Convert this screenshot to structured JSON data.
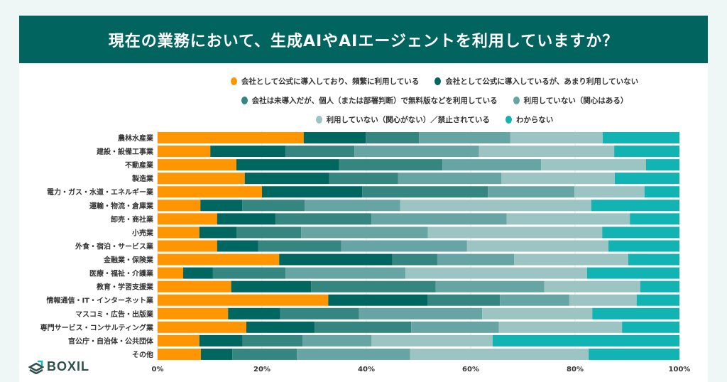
{
  "header": {
    "title": "現在の業務において、生成AIやAIエージェントを利用していますか？"
  },
  "brand": {
    "logo_text": "BOXIL"
  },
  "chart_data": {
    "type": "bar",
    "orientation": "horizontal",
    "stacked": true,
    "title": "現在の業務において、生成AIやAIエージェントを利用していますか？",
    "xlim": [
      0,
      100
    ],
    "xticks": [
      "0%",
      "20%",
      "40%",
      "60%",
      "80%",
      "100%"
    ],
    "grid": true,
    "legend_position": "top",
    "categories": [
      "農林水産業",
      "建設・設備工事業",
      "不動産業",
      "製造業",
      "電力・ガス・水道・エネルギー業",
      "運輸・物流・倉庫業",
      "卸売・商社業",
      "小売業",
      "外食・宿泊・サービス業",
      "金融業・保険業",
      "医療・福祉・介護業",
      "教育・学習支援業",
      "情報通信・IT・インターネット業",
      "マスコミ・広告・出版業",
      "専門サービス・コンサルティング業",
      "官公庁・自治体・公共団体",
      "その他"
    ],
    "series": [
      {
        "name": "会社として公式に導入しており、頻繁に利用している",
        "color": "#ff9500",
        "values": [
          28.0,
          10.1,
          15.1,
          16.7,
          20.0,
          8.2,
          11.4,
          8.0,
          11.4,
          23.3,
          4.9,
          14.1,
          32.7,
          13.5,
          17.0,
          8.0,
          8.3
        ]
      },
      {
        "name": "会社として公式に導入しているが、あまり利用していない",
        "color": "#006660",
        "values": [
          11.9,
          14.4,
          19.7,
          16.2,
          19.2,
          8.0,
          11.2,
          7.1,
          7.9,
          21.7,
          5.7,
          15.3,
          19.0,
          10.0,
          13.1,
          8.3,
          6.0
        ]
      },
      {
        "name": "会社は未導入だが、個人（または部署判断）で無料版などを利用している",
        "color": "#358581",
        "values": [
          10.2,
          13.2,
          19.8,
          13.2,
          24.1,
          12.0,
          18.4,
          12.4,
          15.9,
          8.6,
          13.9,
          23.9,
          13.9,
          15.1,
          18.5,
          11.5,
          12.4
        ]
      },
      {
        "name": "利用していない（関心はある）",
        "color": "#66a5a3",
        "values": [
          17.5,
          23.9,
          18.9,
          19.8,
          16.6,
          18.3,
          25.9,
          24.3,
          24.1,
          14.7,
          23.0,
          20.8,
          13.3,
          23.6,
          16.8,
          13.2,
          21.7
        ]
      },
      {
        "name": "利用していない（関心がない）／禁止されている",
        "color": "#9cc4c3",
        "values": [
          17.7,
          25.9,
          20.1,
          21.7,
          13.4,
          36.6,
          23.6,
          33.4,
          27.1,
          21.9,
          34.8,
          18.4,
          12.9,
          21.1,
          23.6,
          23.2,
          34.2
        ]
      },
      {
        "name": "わからない",
        "color": "#12b3b3",
        "values": [
          14.7,
          12.5,
          6.4,
          12.4,
          6.7,
          16.9,
          9.5,
          14.8,
          13.6,
          9.8,
          17.7,
          7.5,
          8.2,
          16.7,
          11.0,
          35.8,
          17.4
        ]
      }
    ]
  }
}
